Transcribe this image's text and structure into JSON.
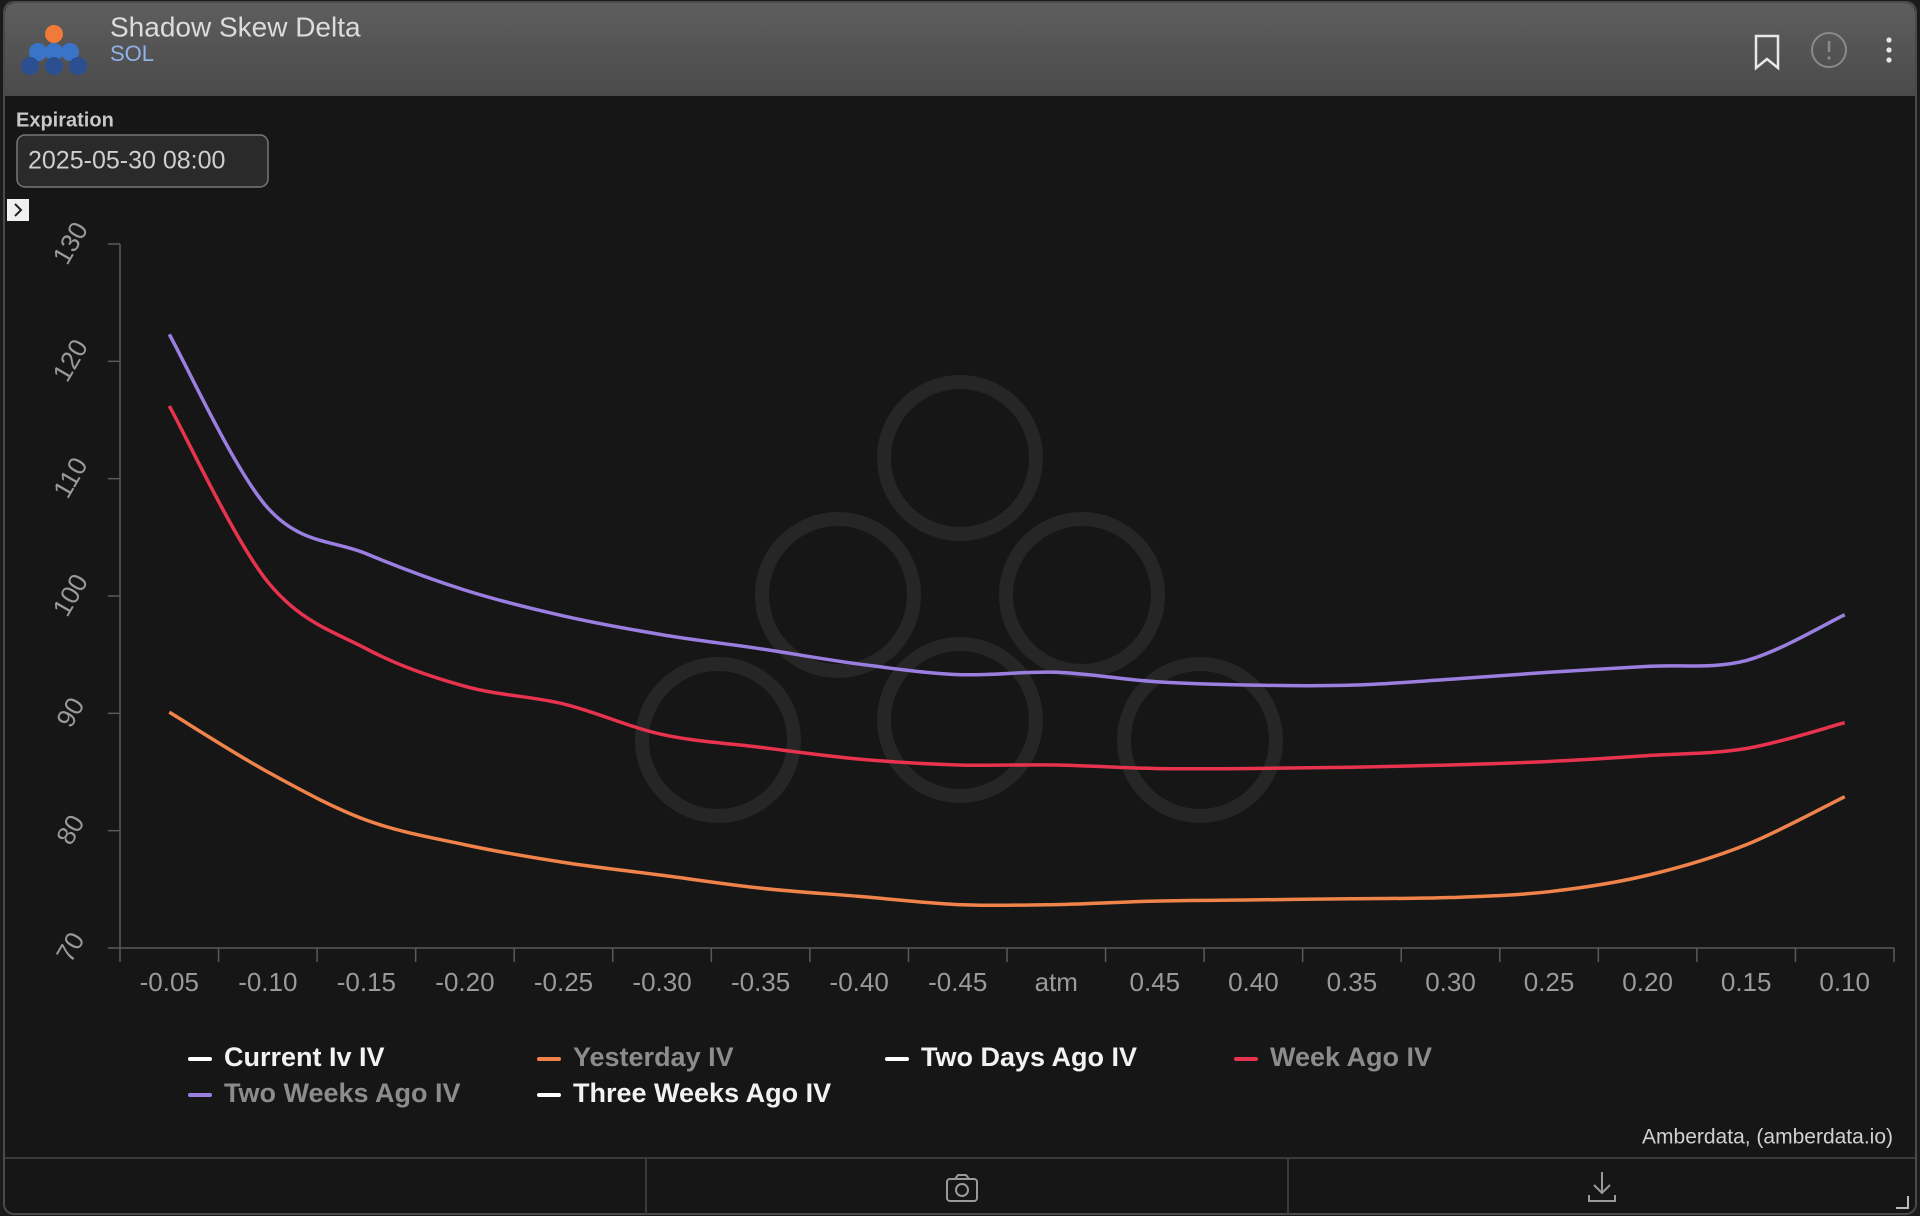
{
  "header": {
    "title": "Shadow Skew Delta",
    "subtitle": "SOL"
  },
  "controls": {
    "expiration_label": "Expiration",
    "expiration_value": "2025-05-30 08:00"
  },
  "credits": "Amberdata, (amberdata.io)",
  "chart_data": {
    "type": "line",
    "categories": [
      "-0.05",
      "-0.10",
      "-0.15",
      "-0.20",
      "-0.25",
      "-0.30",
      "-0.35",
      "-0.40",
      "-0.45",
      "atm",
      "0.45",
      "0.40",
      "0.35",
      "0.30",
      "0.25",
      "0.20",
      "0.15",
      "0.10"
    ],
    "ylim": [
      70,
      130
    ],
    "yticks": [
      70,
      80,
      90,
      100,
      110,
      120,
      130
    ],
    "series": [
      {
        "name": "Current Iv IV",
        "color": "#ffffff",
        "values": [
          null,
          null,
          null,
          null,
          null,
          null,
          null,
          null,
          null,
          null,
          null,
          null,
          null,
          null,
          null,
          null,
          null,
          null
        ]
      },
      {
        "name": "Yesterday IV",
        "color": "#f0834a",
        "values": [
          90.1,
          85.0,
          80.9,
          78.8,
          77.3,
          76.2,
          75.1,
          74.4,
          73.7,
          73.7,
          74.0,
          74.1,
          74.2,
          74.3,
          74.8,
          76.2,
          78.8,
          82.9
        ]
      },
      {
        "name": "Two Days Ago IV",
        "color": "#ffffff",
        "values": [
          null,
          null,
          null,
          null,
          null,
          null,
          null,
          null,
          null,
          null,
          null,
          null,
          null,
          null,
          null,
          null,
          null,
          null
        ]
      },
      {
        "name": "Week Ago IV",
        "color": "#e8334f",
        "values": [
          116.2,
          101.2,
          95.5,
          92.3,
          90.8,
          88.2,
          87.1,
          86.1,
          85.6,
          85.6,
          85.3,
          85.3,
          85.4,
          85.6,
          85.9,
          86.4,
          87.0,
          89.2
        ]
      },
      {
        "name": "Two Weeks Ago IV",
        "color": "#9b7fe0",
        "values": [
          122.3,
          107.5,
          103.6,
          100.5,
          98.3,
          96.7,
          95.5,
          94.2,
          93.3,
          93.5,
          92.7,
          92.4,
          92.4,
          92.9,
          93.5,
          94.0,
          94.5,
          98.4
        ]
      },
      {
        "name": "Three Weeks Ago IV",
        "color": "#ffffff",
        "values": [
          null,
          null,
          null,
          null,
          null,
          null,
          null,
          null,
          null,
          null,
          null,
          null,
          null,
          null,
          null,
          null,
          null,
          null
        ]
      }
    ]
  }
}
